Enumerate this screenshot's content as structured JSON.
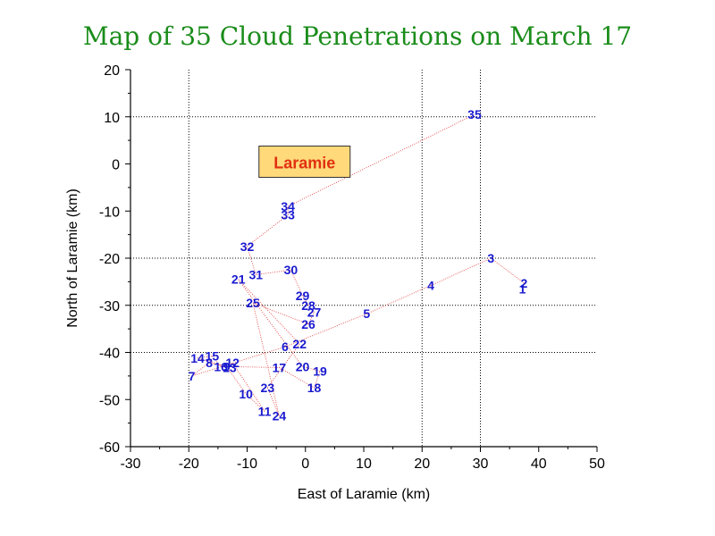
{
  "chart_data": {
    "type": "scatter",
    "title": "Map of 35 Cloud Penetrations on March 17",
    "xlabel": "East of Laramie (km)",
    "ylabel": "North of Laramie (km)",
    "xlim": [
      -30,
      50
    ],
    "ylim": [
      -60,
      20
    ],
    "xticks": [
      -30,
      -20,
      -10,
      0,
      10,
      20,
      30,
      40,
      50
    ],
    "yticks": [
      20,
      10,
      0,
      -10,
      -20,
      -30,
      -40,
      -50,
      -60
    ],
    "x_dotted_gridlines": [
      -20,
      20,
      30
    ],
    "y_dotted_gridlines": [
      10,
      -20,
      -30,
      -40
    ],
    "colors": {
      "title": "#1a8c1a",
      "points": "#1a1ad0",
      "track": "#e03030",
      "annotation_fill": "#ffd97a",
      "annotation_text": "#e03010"
    },
    "annotation": {
      "text": "Laramie",
      "x": 0,
      "y": 0
    },
    "points": [
      {
        "label": "1",
        "x": 37.2,
        "y": -26.5
      },
      {
        "label": "2",
        "x": 37.5,
        "y": -25.3
      },
      {
        "label": "3",
        "x": 31.8,
        "y": -20.0
      },
      {
        "label": "4",
        "x": 21.5,
        "y": -25.8
      },
      {
        "label": "5",
        "x": 10.5,
        "y": -31.8
      },
      {
        "label": "6",
        "x": -3.5,
        "y": -38.8
      },
      {
        "label": "7",
        "x": -19.5,
        "y": -45.0
      },
      {
        "label": "8",
        "x": -16.5,
        "y": -42.2
      },
      {
        "label": "9",
        "x": -13.5,
        "y": -43.0
      },
      {
        "label": "10",
        "x": -10.2,
        "y": -48.8
      },
      {
        "label": "11",
        "x": -7.0,
        "y": -52.5
      },
      {
        "label": "12",
        "x": -12.5,
        "y": -42.2
      },
      {
        "label": "13",
        "x": -13.0,
        "y": -43.2
      },
      {
        "label": "14",
        "x": -18.5,
        "y": -41.2
      },
      {
        "label": "15",
        "x": -16.0,
        "y": -40.8
      },
      {
        "label": "16",
        "x": -14.5,
        "y": -43.0
      },
      {
        "label": "17",
        "x": -4.5,
        "y": -43.2
      },
      {
        "label": "18",
        "x": 1.5,
        "y": -47.5
      },
      {
        "label": "19",
        "x": 2.5,
        "y": -44.0
      },
      {
        "label": "20",
        "x": -0.5,
        "y": -43.0
      },
      {
        "label": "21",
        "x": -11.5,
        "y": -24.5
      },
      {
        "label": "22",
        "x": -1.0,
        "y": -38.2
      },
      {
        "label": "23",
        "x": -6.5,
        "y": -47.5
      },
      {
        "label": "24",
        "x": -4.5,
        "y": -53.5
      },
      {
        "label": "25",
        "x": -9.0,
        "y": -29.5
      },
      {
        "label": "26",
        "x": 0.5,
        "y": -34.0
      },
      {
        "label": "27",
        "x": 1.5,
        "y": -31.5
      },
      {
        "label": "28",
        "x": 0.5,
        "y": -30.0
      },
      {
        "label": "29",
        "x": -0.5,
        "y": -28.0
      },
      {
        "label": "30",
        "x": -2.5,
        "y": -22.5
      },
      {
        "label": "31",
        "x": -8.5,
        "y": -23.5
      },
      {
        "label": "32",
        "x": -10.0,
        "y": -17.5
      },
      {
        "label": "33",
        "x": -3.0,
        "y": -10.8
      },
      {
        "label": "34",
        "x": -3.0,
        "y": -9.0
      },
      {
        "label": "35",
        "x": 29.0,
        "y": 10.5
      }
    ]
  }
}
